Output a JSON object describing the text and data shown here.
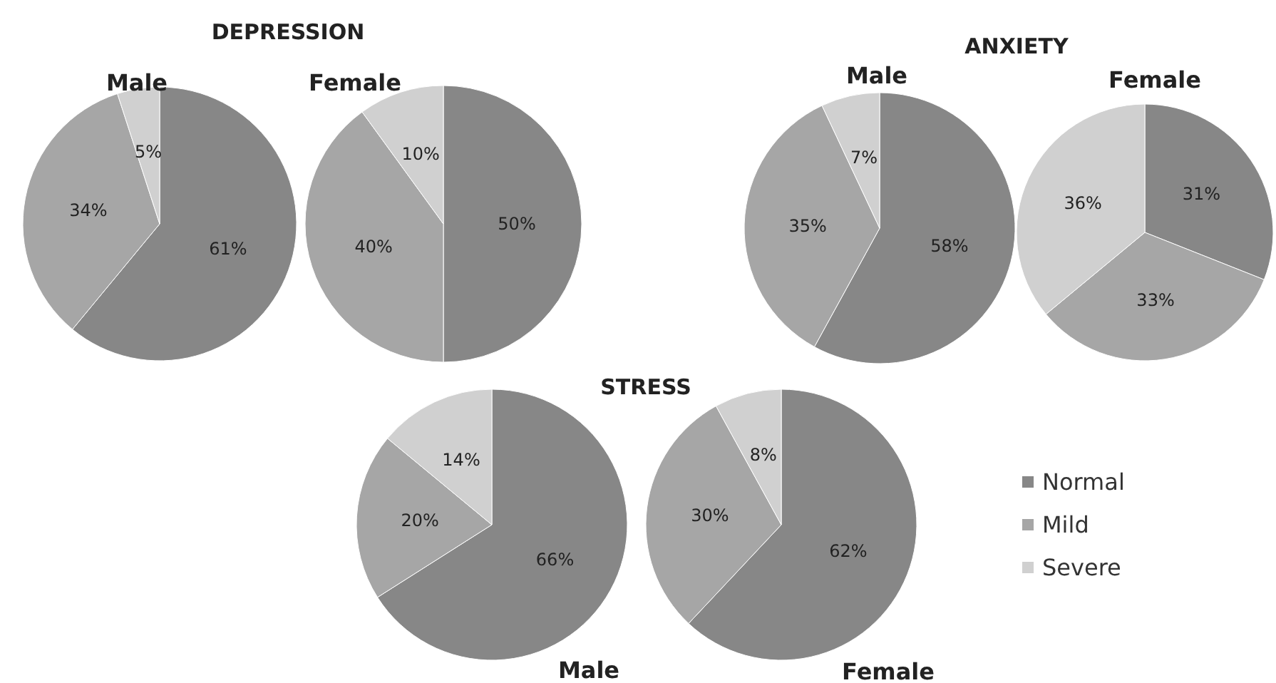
{
  "chart_data": [
    {
      "type": "pie",
      "title": "DEPRESSION",
      "subtitle": "Male",
      "categories": [
        null,
        null,
        null
      ],
      "values": [
        61,
        34,
        5
      ],
      "value_labels": [
        "61%",
        "34%",
        "5%"
      ],
      "colors": [
        "#878787",
        "#a6a6a6",
        "#d0d0d0"
      ]
    },
    {
      "type": "pie",
      "title": "Female",
      "categories": [
        null,
        null,
        null
      ],
      "values": [
        50,
        40,
        10
      ],
      "value_labels": [
        "50%",
        "40%",
        "10%"
      ],
      "colors": [
        "#878787",
        "#a6a6a6",
        "#d0d0d0"
      ]
    },
    {
      "type": "pie",
      "title": "ANXIETY",
      "subtitle": "Male",
      "categories": [
        null,
        null,
        null
      ],
      "values": [
        58,
        35,
        7
      ],
      "value_labels": [
        "58%",
        "35%",
        "7%"
      ],
      "colors": [
        "#878787",
        "#a6a6a6",
        "#d0d0d0"
      ]
    },
    {
      "type": "pie",
      "title": "Female",
      "categories": [
        null,
        null,
        null
      ],
      "values": [
        31,
        33,
        36
      ],
      "value_labels": [
        "31%",
        "33%",
        "36%"
      ],
      "colors": [
        "#878787",
        "#a6a6a6",
        "#d0d0d0"
      ]
    },
    {
      "type": "pie",
      "title": "STRESS",
      "subtitle": "Male",
      "categories": [
        null,
        null,
        null
      ],
      "values": [
        66,
        20,
        14
      ],
      "value_labels": [
        "66%",
        "20%",
        "14%"
      ],
      "colors": [
        "#878787",
        "#a6a6a6",
        "#d0d0d0"
      ]
    },
    {
      "type": "pie",
      "title": "Female",
      "categories": [
        "Normal",
        "Mild",
        "Severe"
      ],
      "values": [
        62,
        30,
        8
      ],
      "value_labels": [
        "62%",
        "30%",
        "8%"
      ],
      "colors": [
        "#878787",
        "#a6a6a6",
        "#d0d0d0"
      ],
      "legend": "right"
    }
  ]
}
